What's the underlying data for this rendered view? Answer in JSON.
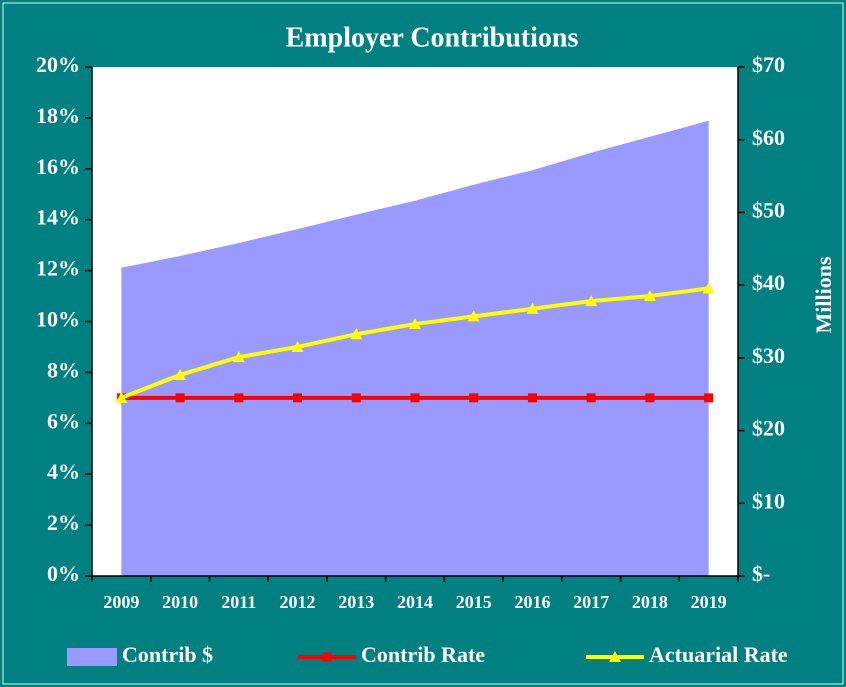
{
  "chart_data": {
    "type": "line",
    "title": "Employer Contributions",
    "categories": [
      "2009",
      "2010",
      "2011",
      "2012",
      "2013",
      "2014",
      "2015",
      "2016",
      "2017",
      "2018",
      "2019"
    ],
    "series": [
      {
        "name": "Contrib $",
        "type": "area",
        "axis": "y2",
        "color": "#9999ff",
        "values": [
          42.4,
          44.0,
          45.8,
          47.7,
          49.7,
          51.6,
          53.8,
          55.8,
          58.2,
          60.4,
          62.6
        ]
      },
      {
        "name": "Contrib Rate",
        "type": "line",
        "marker": "square",
        "color": "#ff0000",
        "values": [
          7,
          7,
          7,
          7,
          7,
          7,
          7,
          7,
          7,
          7,
          7
        ]
      },
      {
        "name": "Actuarial Rate",
        "type": "line",
        "marker": "triangle",
        "color": "#ffff00",
        "values": [
          7.0,
          7.9,
          8.6,
          9.0,
          9.5,
          9.9,
          10.2,
          10.5,
          10.8,
          11.0,
          11.3
        ]
      }
    ],
    "ylim": [
      0,
      20
    ],
    "yticks": [
      {
        "value": 0,
        "label": "0%"
      },
      {
        "value": 2,
        "label": "2%"
      },
      {
        "value": 4,
        "label": "4%"
      },
      {
        "value": 6,
        "label": "6%"
      },
      {
        "value": 8,
        "label": "8%"
      },
      {
        "value": 10,
        "label": "10%"
      },
      {
        "value": 12,
        "label": "12%"
      },
      {
        "value": 14,
        "label": "14%"
      },
      {
        "value": 16,
        "label": "16%"
      },
      {
        "value": 18,
        "label": "18%"
      },
      {
        "value": 20,
        "label": "20%"
      }
    ],
    "y2lim": [
      0,
      70
    ],
    "y2ticks": [
      {
        "value": 0,
        "label": "$-"
      },
      {
        "value": 10,
        "label": "$10"
      },
      {
        "value": 20,
        "label": "$20"
      },
      {
        "value": 30,
        "label": "$30"
      },
      {
        "value": 40,
        "label": "$40"
      },
      {
        "value": 50,
        "label": "$50"
      },
      {
        "value": 60,
        "label": "$60"
      },
      {
        "value": 70,
        "label": "$70"
      }
    ],
    "y2label": "Millions",
    "legend": "bottom"
  }
}
